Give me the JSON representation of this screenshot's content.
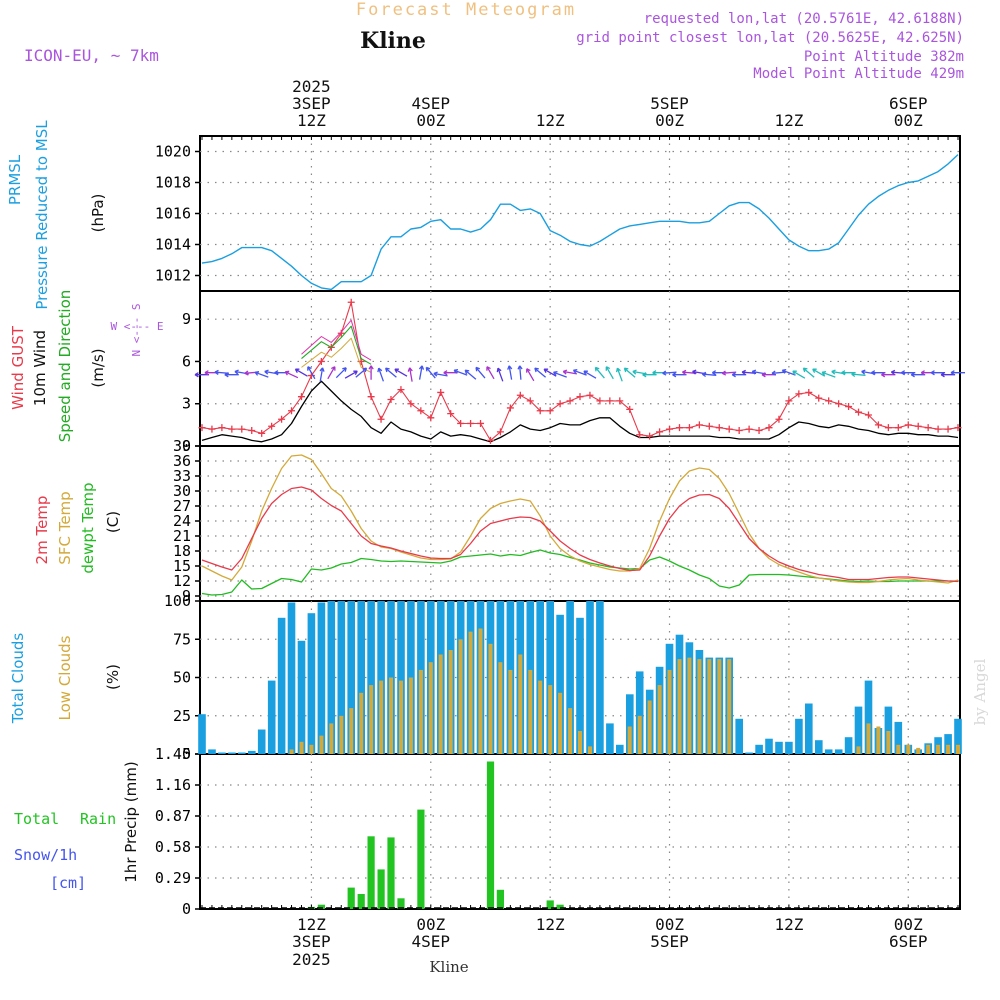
{
  "header": {
    "title": "Forecast Meteogram",
    "location": "Kline",
    "model": "ICON-EU, ~ 7km",
    "requested": "requested lon,lat (20.5761E, 42.6188N)",
    "grid_point": "grid point closest lon,lat (20.5625E, 42.625N)",
    "point_alt": "Point Altitude 382m",
    "model_alt": "Model Point Altitude 429m"
  },
  "footer": {
    "location": "Kline",
    "watermark": "by Angel"
  },
  "compass": {
    "n": "N",
    "e": "E",
    "s": "S",
    "w": "W",
    "we": "W <--- E",
    "ns": "N <--- S"
  },
  "time_axis": {
    "top_labels": [
      {
        "line1": "2025",
        "line2": "3SEP",
        "line3": "12Z",
        "hour": 12
      },
      {
        "line1": "",
        "line2": "4SEP",
        "line3": "00Z",
        "hour": 24
      },
      {
        "line1": "",
        "line2": "",
        "line3": "12Z",
        "hour": 36
      },
      {
        "line1": "",
        "line2": "5SEP",
        "line3": "00Z",
        "hour": 48
      },
      {
        "line1": "",
        "line2": "",
        "line3": "12Z",
        "hour": 60
      },
      {
        "line1": "",
        "line2": "6SEP",
        "line3": "00Z",
        "hour": 72
      }
    ],
    "bottom_labels": [
      {
        "line1": "12Z",
        "line2": "3SEP",
        "line3": "2025",
        "hour": 12
      },
      {
        "line1": "00Z",
        "line2": "4SEP",
        "line3": "",
        "hour": 24
      },
      {
        "line1": "12Z",
        "line2": "",
        "line3": "",
        "hour": 36
      },
      {
        "line1": "00Z",
        "line2": "5SEP",
        "line3": "",
        "hour": 48
      },
      {
        "line1": "12Z",
        "line2": "",
        "line3": "",
        "hour": 60
      },
      {
        "line1": "00Z",
        "line2": "6SEP",
        "line3": "",
        "hour": 72
      }
    ]
  },
  "colors": {
    "pressure": "#1a9fe0",
    "gust": "#e83a4a",
    "wind": "#000000",
    "wind_dir": "#22aa22",
    "t2m": "#e83a4a",
    "sfc": "#d4a93a",
    "dewpt": "#22bb22",
    "total_clouds": "#1a9fe0",
    "low_clouds": "#d4a93a",
    "rain": "#22c422",
    "snow": "#4455ee",
    "magenta": "#aa55dd",
    "title": "#f0c080"
  },
  "chart_data": [
    {
      "type": "line",
      "name": "pressure",
      "labels": {
        "line1": "PRMSL",
        "line2": "Pressure Reduced to MSL",
        "unit": "(hPa)"
      },
      "x_range": [
        1,
        77
      ],
      "ylim": [
        1011,
        1021
      ],
      "yticks": [
        1012,
        1014,
        1016,
        1018,
        1020
      ],
      "series": [
        {
          "name": "PRMSL",
          "values": [
            1012.8,
            1012.9,
            1013.1,
            1013.4,
            1013.8,
            1013.8,
            1013.8,
            1013.6,
            1013.1,
            1012.6,
            1012.0,
            1011.5,
            1011.2,
            1011.1,
            1011.6,
            1011.6,
            1011.6,
            1012.0,
            1013.7,
            1014.5,
            1014.5,
            1015.0,
            1015.1,
            1015.5,
            1015.6,
            1015.0,
            1015.0,
            1014.8,
            1015.0,
            1015.6,
            1016.6,
            1016.6,
            1016.2,
            1016.3,
            1016.0,
            1014.9,
            1014.6,
            1014.2,
            1014.0,
            1013.9,
            1014.2,
            1014.6,
            1015.0,
            1015.2,
            1015.3,
            1015.4,
            1015.5,
            1015.5,
            1015.5,
            1015.4,
            1015.4,
            1015.5,
            1016.0,
            1016.5,
            1016.7,
            1016.7,
            1016.3,
            1015.7,
            1015.0,
            1014.3,
            1013.9,
            1013.6,
            1013.6,
            1013.7,
            1014.1,
            1015.0,
            1015.9,
            1016.6,
            1017.1,
            1017.5,
            1017.8,
            1018.0,
            1018.1,
            1018.4,
            1018.7,
            1019.2,
            1019.8
          ]
        }
      ]
    },
    {
      "type": "line",
      "name": "wind",
      "labels": {
        "gust": "Wind GUST",
        "wind": "10m Wind",
        "dir": "Speed and Direction",
        "unit": "(m/s)"
      },
      "x_range": [
        1,
        77
      ],
      "ylim": [
        0,
        11
      ],
      "yticks": [
        0,
        3,
        6,
        9
      ],
      "series": [
        {
          "name": "Wind GUST",
          "values": [
            1.3,
            1.2,
            1.3,
            1.2,
            1.2,
            1.1,
            0.9,
            1.4,
            1.9,
            2.5,
            3.5,
            5.0,
            6.0,
            7.0,
            8.0,
            10.2,
            6.0,
            3.5,
            1.9,
            3.3,
            4.0,
            3.0,
            2.5,
            2.0,
            3.8,
            2.3,
            1.6,
            1.6,
            1.6,
            0.4,
            1.0,
            2.7,
            3.6,
            3.2,
            2.5,
            2.5,
            3.0,
            3.2,
            3.5,
            3.6,
            3.2,
            3.2,
            3.2,
            2.6,
            0.8,
            0.7,
            1.0,
            1.2,
            1.3,
            1.3,
            1.5,
            1.4,
            1.3,
            1.2,
            1.1,
            1.2,
            1.1,
            1.3,
            1.9,
            3.2,
            3.7,
            3.8,
            3.4,
            3.2,
            3.0,
            2.8,
            2.4,
            2.2,
            1.5,
            1.3,
            1.3,
            1.5,
            1.4,
            1.3,
            1.2,
            1.2,
            1.3
          ]
        },
        {
          "name": "10m Wind",
          "values": [
            0.4,
            0.6,
            0.8,
            0.7,
            0.6,
            0.4,
            0.3,
            0.5,
            0.8,
            1.6,
            2.8,
            3.9,
            4.6,
            3.9,
            3.2,
            2.6,
            2.1,
            1.3,
            0.9,
            1.7,
            1.2,
            1.0,
            0.7,
            0.5,
            1.0,
            0.7,
            0.8,
            0.7,
            0.5,
            0.3,
            0.6,
            1.0,
            1.5,
            1.2,
            1.1,
            1.3,
            1.6,
            1.5,
            1.5,
            1.8,
            2.0,
            2.0,
            1.4,
            0.9,
            0.6,
            0.6,
            0.7,
            0.7,
            0.7,
            0.7,
            0.7,
            0.7,
            0.6,
            0.6,
            0.5,
            0.5,
            0.5,
            0.5,
            0.8,
            1.3,
            1.7,
            1.6,
            1.4,
            1.3,
            1.5,
            1.4,
            1.2,
            1.1,
            0.9,
            0.8,
            0.9,
            0.9,
            0.8,
            0.8,
            0.7,
            0.7,
            0.6
          ]
        },
        {
          "name": "Speed and Direction",
          "values": [
            null,
            null,
            null,
            null,
            null,
            null,
            null,
            null,
            null,
            null,
            6.2,
            6.8,
            7.4,
            7.0,
            7.7,
            8.5,
            6.2,
            5.8,
            null,
            null,
            null,
            null,
            null,
            null,
            null,
            null,
            null,
            null,
            null,
            null,
            null,
            null,
            null,
            null,
            null,
            null,
            null,
            null,
            null,
            null,
            null,
            null,
            null,
            null,
            null,
            null,
            null,
            null,
            null,
            null,
            null,
            null,
            null,
            null,
            null,
            null,
            null,
            null,
            null,
            null,
            null,
            null,
            null,
            null,
            null,
            null,
            null,
            null,
            null,
            null,
            null,
            null,
            null,
            null,
            null,
            null,
            null
          ]
        }
      ],
      "direction_arrows": {
        "y_value": 5.2,
        "angles_deg": [
          180,
          180,
          175,
          180,
          170,
          185,
          160,
          170,
          180,
          155,
          150,
          120,
          80,
          60,
          45,
          30,
          40,
          90,
          110,
          140,
          150,
          100,
          80,
          130,
          170,
          180,
          160,
          140,
          130,
          120,
          110,
          100,
          95,
          120,
          140,
          150,
          160,
          170,
          160,
          150,
          130,
          120,
          110,
          140,
          170,
          180,
          180,
          185,
          180,
          175,
          170,
          175,
          180,
          185,
          180,
          175,
          170,
          180,
          185,
          160,
          150,
          140,
          150,
          160,
          170,
          180,
          175,
          170,
          180,
          180,
          175,
          180,
          180,
          180,
          180,
          180,
          180
        ]
      }
    },
    {
      "type": "line",
      "name": "temperature",
      "labels": {
        "t2m": "2m Temp",
        "sfc": "SFC Temp",
        "dewpt": "dewpt Temp",
        "unit": "(C)"
      },
      "x_range": [
        1,
        77
      ],
      "ylim": [
        8,
        39
      ],
      "yticks": [
        9,
        12,
        15,
        18,
        21,
        24,
        27,
        30,
        33,
        36,
        39
      ],
      "series": [
        {
          "name": "2m Temp",
          "values": [
            16.2,
            15.5,
            14.8,
            14.2,
            16.5,
            20.5,
            24.5,
            27.5,
            29.3,
            30.5,
            30.8,
            30.2,
            28.5,
            27.1,
            26.0,
            23.5,
            21.0,
            19.5,
            19.0,
            18.6,
            18.0,
            17.5,
            17.0,
            16.6,
            16.5,
            16.5,
            17.3,
            19.5,
            22.0,
            23.5,
            24.0,
            24.5,
            24.8,
            24.7,
            24.0,
            22.0,
            20.0,
            18.5,
            17.2,
            16.3,
            15.6,
            15.0,
            14.5,
            14.1,
            14.2,
            17.0,
            21.0,
            24.5,
            27.0,
            28.5,
            29.2,
            29.3,
            28.5,
            26.5,
            23.5,
            20.5,
            18.5,
            17.0,
            15.8,
            15.0,
            14.3,
            13.8,
            13.3,
            13.0,
            12.7,
            12.3,
            12.3,
            12.3,
            12.5,
            12.7,
            12.8,
            12.8,
            12.6,
            12.4,
            12.2,
            12.0,
            11.9
          ]
        },
        {
          "name": "SFC Temp",
          "values": [
            15.0,
            14.0,
            13.0,
            12.2,
            14.8,
            20.0,
            26.0,
            30.5,
            34.5,
            37.0,
            37.2,
            36.3,
            33.5,
            30.5,
            29.0,
            26.0,
            22.5,
            20.0,
            18.8,
            18.5,
            17.8,
            17.2,
            16.6,
            16.3,
            16.3,
            16.4,
            17.8,
            21.0,
            24.5,
            26.5,
            27.5,
            28.0,
            28.4,
            28.0,
            25.0,
            21.0,
            18.5,
            17.0,
            16.0,
            15.3,
            14.8,
            14.3,
            14.0,
            14.0,
            14.5,
            18.5,
            24.0,
            28.5,
            32.0,
            34.0,
            34.6,
            34.3,
            32.5,
            29.5,
            25.5,
            21.5,
            18.5,
            16.5,
            15.3,
            14.5,
            13.8,
            13.1,
            12.6,
            12.3,
            12.0,
            11.8,
            11.7,
            11.7,
            11.9,
            12.2,
            12.4,
            12.5,
            12.2,
            12.0,
            11.8,
            11.6,
            12.2
          ]
        },
        {
          "name": "dewpt Temp",
          "values": [
            9.5,
            9.2,
            9.3,
            9.8,
            12.2,
            10.4,
            10.5,
            11.5,
            12.5,
            12.3,
            11.8,
            14.4,
            14.2,
            14.6,
            15.4,
            15.7,
            16.5,
            16.3,
            16.0,
            15.9,
            16.0,
            15.9,
            15.8,
            15.7,
            15.6,
            16.0,
            16.8,
            17.0,
            17.2,
            17.4,
            17.0,
            17.3,
            17.1,
            17.7,
            18.2,
            17.6,
            17.3,
            16.7,
            16.2,
            15.6,
            15.2,
            14.8,
            14.6,
            14.4,
            14.5,
            16.2,
            16.8,
            16.0,
            15.0,
            14.2,
            13.2,
            12.5,
            11.0,
            10.6,
            11.2,
            13.2,
            13.3,
            13.3,
            13.3,
            13.2,
            13.0,
            12.8,
            12.6,
            12.4,
            12.2,
            12.0,
            11.9,
            12.0,
            11.9,
            11.9,
            12.0,
            12.0,
            12.0,
            12.0,
            12.0,
            12.0,
            12.0
          ]
        }
      ]
    },
    {
      "type": "bar",
      "name": "clouds",
      "labels": {
        "total": "Total Clouds",
        "low": "Low Clouds",
        "unit": "(%)"
      },
      "x_range": [
        1,
        77
      ],
      "ylim": [
        0,
        100
      ],
      "yticks": [
        0,
        25,
        50,
        75,
        100
      ],
      "series": [
        {
          "name": "Total Clouds",
          "values": [
            26,
            3,
            1,
            1,
            1,
            2,
            16,
            48,
            89,
            99,
            74,
            92,
            99,
            100,
            100,
            100,
            100,
            100,
            100,
            100,
            100,
            100,
            100,
            100,
            100,
            100,
            100,
            100,
            100,
            100,
            100,
            100,
            100,
            100,
            100,
            100,
            91,
            100,
            89,
            100,
            100,
            20,
            6,
            39,
            54,
            42,
            57,
            72,
            78,
            73,
            68,
            63,
            63,
            63,
            23,
            1,
            6,
            10,
            8,
            8,
            23,
            33,
            9,
            3,
            3,
            11,
            31,
            48,
            17,
            31,
            21,
            6,
            3,
            7,
            11,
            13,
            23
          ]
        },
        {
          "name": "Low Clouds",
          "values": [
            0,
            0,
            0,
            0,
            0,
            0,
            0,
            0,
            0,
            3,
            8,
            6,
            12,
            20,
            25,
            30,
            40,
            45,
            48,
            50,
            48,
            50,
            55,
            60,
            65,
            68,
            75,
            80,
            82,
            72,
            60,
            55,
            65,
            55,
            48,
            45,
            40,
            30,
            15,
            5,
            0,
            0,
            0,
            18,
            25,
            35,
            45,
            55,
            62,
            63,
            62,
            62,
            62,
            62,
            0,
            0,
            0,
            0,
            0,
            0,
            0,
            0,
            0,
            0,
            0,
            0,
            5,
            20,
            18,
            15,
            6,
            6,
            4,
            6,
            6,
            6,
            6
          ]
        }
      ]
    },
    {
      "type": "bar",
      "name": "precip",
      "labels": {
        "total": "Total",
        "rain": "Rain",
        "snow": "Snow/1h",
        "cm": "[cm]",
        "unit": "1hr Precip (mm)"
      },
      "x_range": [
        1,
        77
      ],
      "ylim": [
        0,
        1.45
      ],
      "yticks": [
        0,
        0.29,
        0.58,
        0.87,
        1.16,
        1.45
      ],
      "series": [
        {
          "name": "Rain",
          "values": [
            0,
            0,
            0,
            0,
            0,
            0,
            0,
            0,
            0,
            0,
            0,
            0.02,
            0.04,
            0,
            0,
            0.2,
            0.14,
            0.68,
            0.37,
            0.67,
            0.1,
            0,
            0.93,
            0,
            0,
            0,
            0,
            0,
            0,
            1.38,
            0.18,
            0,
            0,
            0,
            0,
            0.08,
            0.04,
            0,
            0,
            0,
            0,
            0,
            0,
            0,
            0,
            0,
            0,
            0,
            0,
            0,
            0,
            0,
            0,
            0,
            0,
            0,
            0,
            0,
            0,
            0,
            0,
            0,
            0,
            0,
            0,
            0,
            0,
            0,
            0,
            0,
            0,
            0,
            0,
            0,
            0,
            0,
            0
          ]
        }
      ]
    }
  ]
}
